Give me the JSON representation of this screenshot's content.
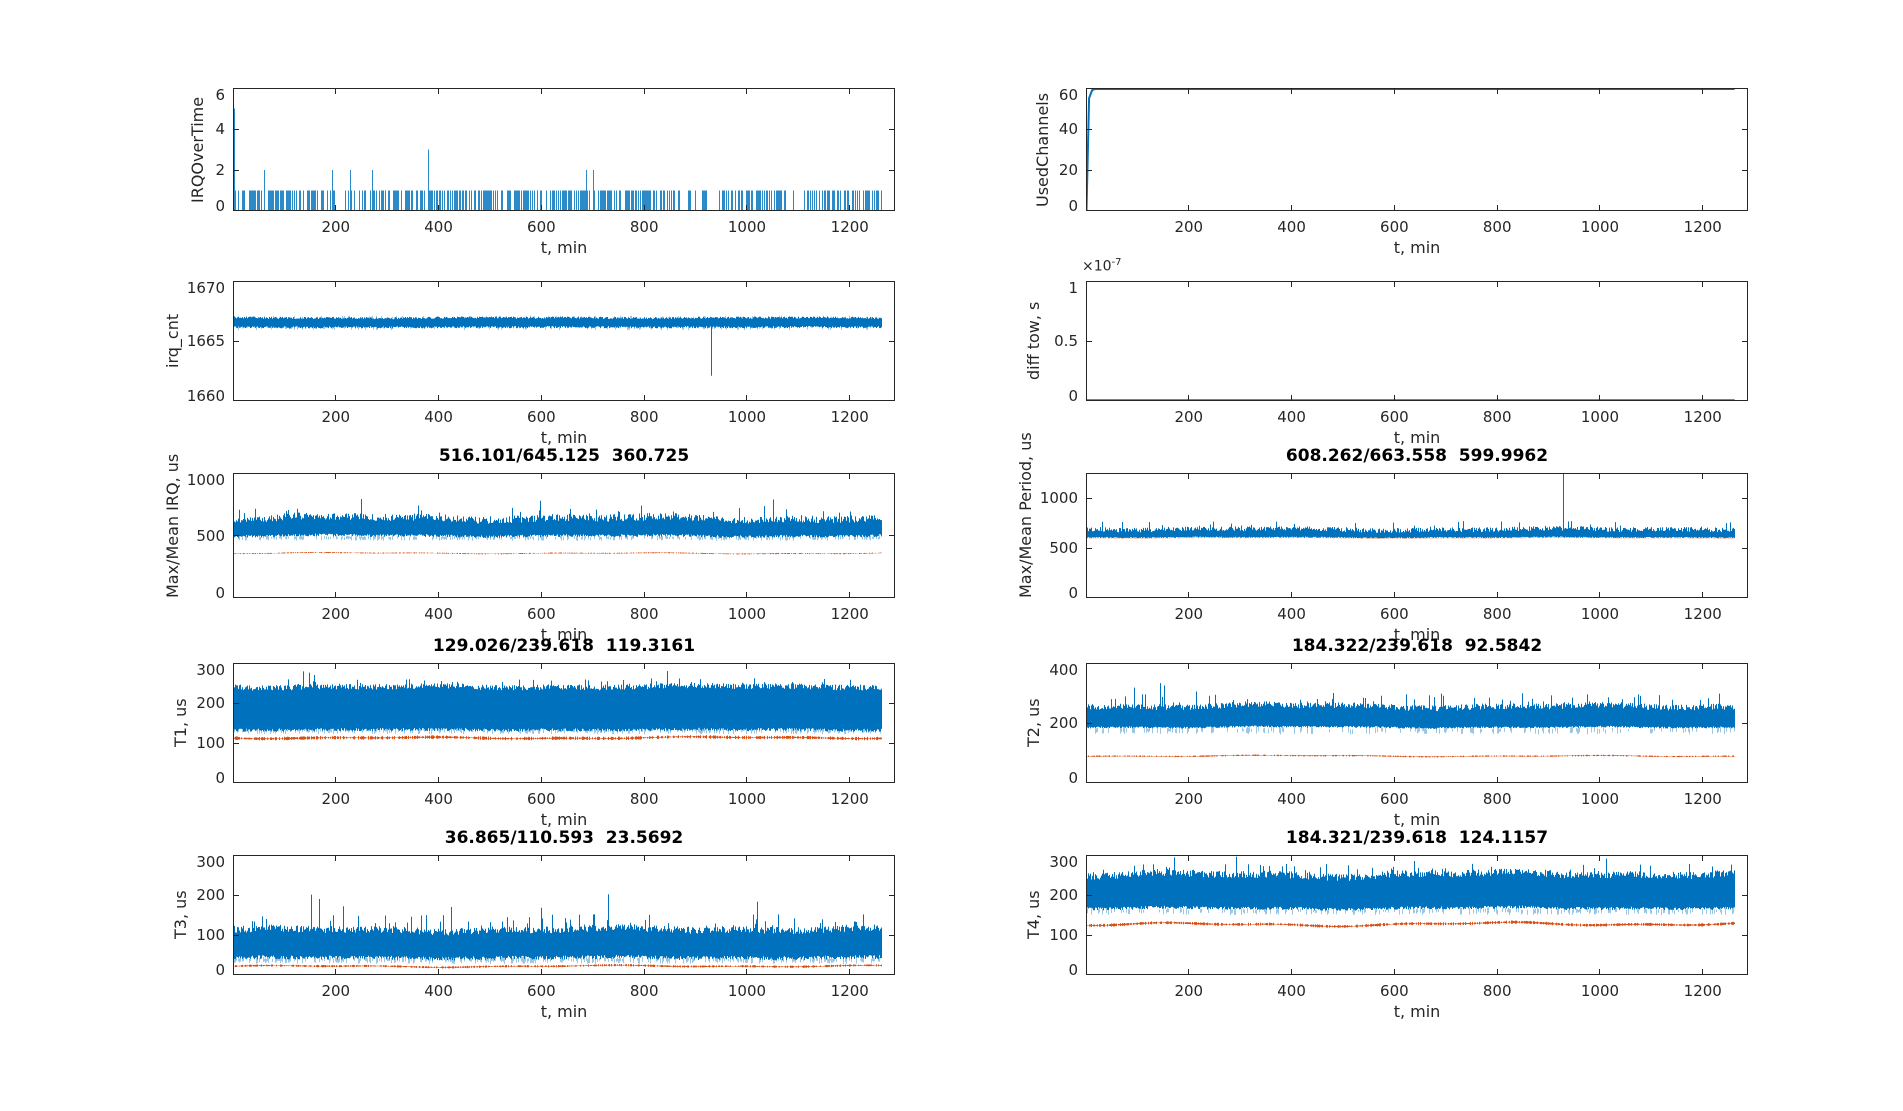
{
  "figure": {
    "background": "#ffffff",
    "palette": {
      "blue": "#0072BD",
      "orange": "#D95319",
      "axis": "#262626"
    }
  },
  "chart_data": [
    {
      "id": "irq-over-time",
      "type": "line",
      "grid": {
        "row": 0,
        "col": 0
      },
      "title": "",
      "ylabel": "IRQOverTime",
      "xlabel": "t, min",
      "xlim": [
        0,
        1288
      ],
      "ylim": [
        0,
        6
      ],
      "xticks": [
        200,
        400,
        600,
        800,
        1000,
        1200
      ],
      "yticks": [
        0,
        2,
        4,
        6
      ],
      "grid_on": false,
      "legend": null,
      "series": [
        {
          "name": "irq-overruns",
          "color": "#0072BD",
          "render": "impulses",
          "x_end": 1262,
          "base_value": 1,
          "density": 0.52,
          "gaps": [
            [
              925,
              947
            ],
            [
              1078,
              1116
            ]
          ],
          "spikes": [
            [
              2,
              5
            ],
            [
              62,
              2
            ],
            [
              193,
              2
            ],
            [
              228,
              2
            ],
            [
              271,
              2
            ],
            [
              380,
              3
            ],
            [
              688,
              2
            ],
            [
              702,
              2
            ]
          ]
        }
      ]
    },
    {
      "id": "used-channels",
      "type": "line",
      "grid": {
        "row": 0,
        "col": 1
      },
      "title": "",
      "ylabel": "UsedChannels",
      "xlabel": "t, min",
      "xlim": [
        0,
        1288
      ],
      "ylim": [
        0,
        60
      ],
      "xticks": [
        200,
        400,
        600,
        800,
        1000,
        1200
      ],
      "yticks": [
        0,
        20,
        40,
        60
      ],
      "grid_on": false,
      "legend": null,
      "series": [
        {
          "name": "used-channels-count",
          "color": "#0072BD",
          "render": "polyline",
          "width": 2,
          "points": [
            [
              1,
              0
            ],
            [
              6,
              55
            ],
            [
              12,
              59
            ],
            [
              18,
              60
            ],
            [
              1262,
              60
            ]
          ]
        }
      ]
    },
    {
      "id": "irq-cnt",
      "type": "line",
      "grid": {
        "row": 1,
        "col": 0
      },
      "title": "",
      "ylabel": "irq_cnt",
      "xlabel": "t, min",
      "xlim": [
        0,
        1288
      ],
      "ylim": [
        1660,
        1670
      ],
      "xticks": [
        200,
        400,
        600,
        800,
        1000,
        1200
      ],
      "yticks": [
        1660,
        1665,
        1670
      ],
      "grid_on": false,
      "legend": null,
      "series": [
        {
          "name": "irq-count-band",
          "color": "#0072BD",
          "render": "band",
          "x_end": 1262,
          "lo": 1666.15,
          "hi": 1666.9,
          "jitter": 0.18,
          "lo_jitter": 0.18,
          "wander": 0.04,
          "p_spike": 0,
          "spike_hi": 0,
          "halo": [
            1665.9,
            1667.12
          ],
          "halo_skip": 0.45,
          "up_spikes": [],
          "down_spikes": [
            [
              1,
              1660.2
            ],
            [
              931,
              1662.1
            ]
          ]
        }
      ]
    },
    {
      "id": "diff-tow",
      "type": "line",
      "grid": {
        "row": 1,
        "col": 1
      },
      "title": "",
      "ylabel": "diff tow, s",
      "xlabel": "t, min",
      "y_exponent": {
        "base": "×10",
        "power": "-7"
      },
      "xlim": [
        0,
        1288
      ],
      "ylim": [
        0,
        1
      ],
      "xticks": [
        200,
        400,
        600,
        800,
        1000,
        1200
      ],
      "yticks": [
        0,
        0.5,
        1
      ],
      "grid_on": false,
      "legend": null,
      "series": [
        {
          "name": "diff-tow-seconds",
          "color": "#0072BD",
          "render": "polyline",
          "width": 1.6,
          "points": [
            [
              0,
              0
            ],
            [
              1262,
              0
            ]
          ]
        }
      ]
    },
    {
      "id": "max-mean-irq",
      "type": "line",
      "grid": {
        "row": 2,
        "col": 0
      },
      "title": "516.101/645.125  360.725",
      "ylabel": "Max/Mean IRQ, us",
      "xlabel": "t, min",
      "xlim": [
        0,
        1288
      ],
      "ylim": [
        0,
        1000
      ],
      "xticks": [
        200,
        400,
        600,
        800,
        1000,
        1200
      ],
      "yticks": [
        0,
        500,
        1000
      ],
      "grid_on": false,
      "legend": null,
      "series": [
        {
          "name": "max-irq",
          "color": "#0072BD",
          "render": "band",
          "x_end": 1262,
          "lo": 497,
          "hi": 628,
          "jitter": 60,
          "lo_jitter": 22,
          "wander": 22,
          "p_spike": 0.05,
          "spike_hi": 740,
          "halo": [
            458,
            505
          ],
          "halo_skip": 0.6,
          "up_spikes": [
            [
              250,
              792
            ],
            [
              598,
              778
            ],
            [
              1052,
              788
            ]
          ],
          "down_spikes": [
            [
              1,
              0
            ]
          ]
        },
        {
          "name": "mean-irq",
          "color": "#D95319",
          "render": "fuzzyline",
          "x_end": 1262,
          "level": 358,
          "amp": 9,
          "wander_amp": 7,
          "start_from_zero": true
        }
      ]
    },
    {
      "id": "max-mean-period",
      "type": "line",
      "grid": {
        "row": 2,
        "col": 1
      },
      "title": "608.262/663.558  599.9962",
      "ylabel": "Max/Mean Period, us",
      "xlabel": "t, min",
      "xlim": [
        0,
        1288
      ],
      "ylim": [
        0,
        1250
      ],
      "xticks": [
        200,
        400,
        600,
        800,
        1000,
        1200
      ],
      "yticks": [
        0,
        500,
        1000
      ],
      "grid_on": false,
      "legend": null,
      "series": [
        {
          "name": "max-period",
          "color": "#0072BD",
          "render": "band",
          "x_end": 1262,
          "lo": 606,
          "hi": 678,
          "jitter": 48,
          "lo_jitter": 10,
          "wander": 14,
          "p_spike": 0.04,
          "spike_hi": 770,
          "up_spikes": [
            [
              930,
              1248
            ],
            [
              32,
              762
            ]
          ],
          "down_spikes": [
            [
              1,
              0
            ]
          ]
        },
        {
          "name": "mean-period",
          "color": "#D95319",
          "render": "fuzzyline",
          "x_end": 1262,
          "level": 600,
          "amp": 5,
          "wander_amp": 2,
          "start_from_zero": true
        }
      ]
    },
    {
      "id": "t1",
      "type": "line",
      "grid": {
        "row": 3,
        "col": 0
      },
      "title": "129.026/239.618  119.3161",
      "ylabel": "T1, us",
      "xlabel": "t, min",
      "xlim": [
        0,
        1288
      ],
      "ylim": [
        0,
        300
      ],
      "xticks": [
        200,
        400,
        600,
        800,
        1000,
        1200
      ],
      "yticks": [
        0,
        100,
        200,
        300
      ],
      "grid_on": false,
      "legend": null,
      "series": [
        {
          "name": "t1-max",
          "color": "#0072BD",
          "render": "band",
          "x_end": 1262,
          "lo": 133,
          "hi": 238,
          "jitter": 14,
          "lo_jitter": 8,
          "wander": 4,
          "p_spike": 0.07,
          "spike_hi": 262,
          "halo": [
            122,
            148
          ],
          "halo_skip": 0.45,
          "up_spikes": [
            [
              138,
              279
            ],
            [
              148,
              276
            ],
            [
              158,
              270
            ],
            [
              845,
              280
            ]
          ],
          "down_spikes": [
            [
              1,
              0
            ]
          ]
        },
        {
          "name": "t1-mean",
          "color": "#D95319",
          "render": "fuzzyline",
          "x_end": 1262,
          "level": 113,
          "amp": 9,
          "wander_amp": 3,
          "start_from_zero": true
        }
      ]
    },
    {
      "id": "t2",
      "type": "line",
      "grid": {
        "row": 3,
        "col": 1
      },
      "title": "184.322/239.618  92.5842",
      "ylabel": "T2, us",
      "xlabel": "t, min",
      "xlim": [
        0,
        1288
      ],
      "ylim": [
        0,
        400
      ],
      "xticks": [
        200,
        400,
        600,
        800,
        1000,
        1200
      ],
      "yticks": [
        0,
        200,
        400
      ],
      "grid_on": false,
      "legend": null,
      "series": [
        {
          "name": "t2-max",
          "color": "#0072BD",
          "render": "band",
          "x_end": 1262,
          "lo": 186,
          "hi": 252,
          "jitter": 20,
          "lo_jitter": 6,
          "wander": 8,
          "p_spike": 0.06,
          "spike_hi": 300,
          "halo": [
            162,
            190
          ],
          "halo_skip": 0.7,
          "up_spikes": [
            [
              95,
              318
            ],
            [
              145,
              333
            ],
            [
              152,
              325
            ],
            [
              215,
              305
            ],
            [
              482,
              300
            ],
            [
              1232,
              298
            ]
          ],
          "down_spikes": [
            [
              1,
              0
            ]
          ]
        },
        {
          "name": "t2-mean",
          "color": "#D95319",
          "render": "fuzzyline",
          "x_end": 1262,
          "level": 90,
          "amp": 5,
          "wander_amp": 3,
          "start_from_zero": true
        }
      ]
    },
    {
      "id": "t3",
      "type": "line",
      "grid": {
        "row": 4,
        "col": 0
      },
      "title": "36.865/110.593  23.5692",
      "ylabel": "T3, us",
      "xlabel": "t, min",
      "xlim": [
        0,
        1288
      ],
      "ylim": [
        0,
        300
      ],
      "xticks": [
        200,
        400,
        600,
        800,
        1000,
        1200
      ],
      "yticks": [
        0,
        100,
        200,
        300
      ],
      "grid_on": false,
      "legend": null,
      "series": [
        {
          "name": "t3-max",
          "color": "#0072BD",
          "render": "band",
          "x_end": 1262,
          "lo": 43,
          "hi": 110,
          "jitter": 18,
          "lo_jitter": 10,
          "wander": 6,
          "p_spike": 0.09,
          "spike_hi": 152,
          "halo": [
            28,
            48
          ],
          "halo_skip": 0.55,
          "up_spikes": [
            [
              152,
              201
            ],
            [
              168,
              190
            ],
            [
              215,
              172
            ],
            [
              425,
              170
            ],
            [
              600,
              168
            ],
            [
              730,
              202
            ],
            [
              1020,
              183
            ]
          ],
          "down_spikes": [
            [
              1,
              0
            ]
          ]
        },
        {
          "name": "t3-mean",
          "color": "#D95319",
          "render": "fuzzyline",
          "x_end": 1262,
          "level": 22,
          "amp": 6,
          "wander_amp": 3,
          "start_from_zero": true
        }
      ]
    },
    {
      "id": "t4",
      "type": "line",
      "grid": {
        "row": 4,
        "col": 1
      },
      "title": "184.321/239.618  124.1157",
      "ylabel": "T4, us",
      "xlabel": "t, min",
      "xlim": [
        0,
        1288
      ],
      "ylim": [
        0,
        300
      ],
      "xticks": [
        200,
        400,
        600,
        800,
        1000,
        1200
      ],
      "yticks": [
        0,
        100,
        200,
        300
      ],
      "grid_on": false,
      "legend": null,
      "series": [
        {
          "name": "t4-max",
          "color": "#0072BD",
          "render": "band",
          "x_end": 1262,
          "lo": 167,
          "hi": 248,
          "jitter": 18,
          "lo_jitter": 8,
          "wander": 8,
          "p_spike": 0.08,
          "spike_hi": 278,
          "halo": [
            150,
            170
          ],
          "halo_skip": 0.7,
          "up_spikes": [
            [
              172,
              294
            ],
            [
              292,
              296
            ],
            [
              640,
              285
            ],
            [
              1013,
              291
            ]
          ],
          "down_spikes": [
            [
              1,
              0
            ]
          ]
        },
        {
          "name": "t4-mean",
          "color": "#D95319",
          "render": "fuzzyline",
          "x_end": 1262,
          "level": 127,
          "amp": 8,
          "wander_amp": 6,
          "start_from_zero": true
        }
      ]
    }
  ]
}
